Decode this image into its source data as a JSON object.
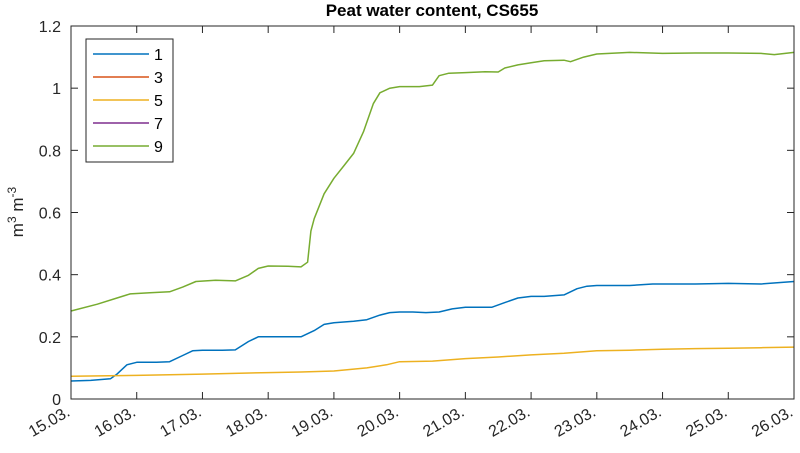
{
  "chart_data": {
    "type": "line",
    "title": "Peat water content, CS655",
    "xlabel": "",
    "ylabel": "m^3 m^-3",
    "ylabel_parts": {
      "base1": "m",
      "exp1": "3",
      "base2": "m",
      "exp2": "-3"
    },
    "xlim": [
      "15.03.",
      "26.03."
    ],
    "ylim": [
      0,
      1.2
    ],
    "x_ticks": [
      "15.03.",
      "16.03.",
      "17.03.",
      "18.03.",
      "19.03.",
      "20.03.",
      "21.03.",
      "22.03.",
      "23.03.",
      "24.03.",
      "25.03.",
      "26.03."
    ],
    "y_ticks": [
      "0",
      "0.2",
      "0.4",
      "0.6",
      "0.8",
      "1",
      "1.2"
    ],
    "y_tick_values": [
      0,
      0.2,
      0.4,
      0.6,
      0.8,
      1.0,
      1.2
    ],
    "grid": false,
    "legend_position": "northwest",
    "x_day_offsets_note": "x values are days after 15.03.",
    "series": [
      {
        "name": "1",
        "color": "#0072BD",
        "x": [
          0,
          0.3,
          0.6,
          0.7,
          0.85,
          1.0,
          1.3,
          1.5,
          1.7,
          1.85,
          2.0,
          2.3,
          2.5,
          2.7,
          2.85,
          3.0,
          3.3,
          3.5,
          3.7,
          3.85,
          4.0,
          4.3,
          4.5,
          4.7,
          4.85,
          5.0,
          5.2,
          5.4,
          5.6,
          5.8,
          6.0,
          6.2,
          6.4,
          6.6,
          6.8,
          7.0,
          7.2,
          7.5,
          7.7,
          7.85,
          8.0,
          8.3,
          8.5,
          8.7,
          8.85,
          9.0,
          9.5,
          10.0,
          10.5,
          11.0
        ],
        "y": [
          0.058,
          0.06,
          0.065,
          0.08,
          0.11,
          0.118,
          0.118,
          0.12,
          0.14,
          0.155,
          0.157,
          0.157,
          0.158,
          0.185,
          0.2,
          0.2,
          0.2,
          0.2,
          0.22,
          0.24,
          0.245,
          0.25,
          0.255,
          0.27,
          0.278,
          0.28,
          0.28,
          0.278,
          0.28,
          0.29,
          0.295,
          0.295,
          0.295,
          0.31,
          0.325,
          0.33,
          0.33,
          0.335,
          0.355,
          0.363,
          0.365,
          0.365,
          0.365,
          0.368,
          0.37,
          0.37,
          0.37,
          0.372,
          0.37,
          0.378
        ]
      },
      {
        "name": "3",
        "color": "#D95319",
        "x": [],
        "y": []
      },
      {
        "name": "5",
        "color": "#EDB120",
        "x": [
          0,
          1.0,
          2.0,
          3.0,
          3.5,
          4.0,
          4.5,
          4.8,
          5.0,
          5.5,
          6.0,
          6.5,
          7.0,
          7.5,
          8.0,
          8.5,
          9.0,
          9.5,
          10.0,
          10.5,
          11.0
        ],
        "y": [
          0.073,
          0.076,
          0.08,
          0.085,
          0.087,
          0.09,
          0.1,
          0.11,
          0.12,
          0.122,
          0.13,
          0.135,
          0.142,
          0.147,
          0.155,
          0.157,
          0.16,
          0.162,
          0.163,
          0.165,
          0.167
        ]
      },
      {
        "name": "7",
        "color": "#7E2F8E",
        "x": [],
        "y": []
      },
      {
        "name": "9",
        "color": "#77AC30",
        "x": [
          0,
          0.4,
          0.7,
          0.9,
          1.2,
          1.5,
          1.7,
          1.9,
          2.2,
          2.5,
          2.7,
          2.85,
          3.0,
          3.3,
          3.5,
          3.6,
          3.65,
          3.7,
          3.85,
          4.0,
          4.15,
          4.3,
          4.45,
          4.6,
          4.7,
          4.85,
          5.0,
          5.3,
          5.5,
          5.6,
          5.75,
          6.0,
          6.3,
          6.5,
          6.6,
          6.8,
          7.0,
          7.2,
          7.5,
          7.6,
          7.8,
          8.0,
          8.5,
          9.0,
          9.5,
          10.0,
          10.5,
          10.7,
          11.0
        ],
        "y": [
          0.283,
          0.305,
          0.325,
          0.338,
          0.342,
          0.345,
          0.36,
          0.378,
          0.382,
          0.38,
          0.398,
          0.42,
          0.428,
          0.427,
          0.425,
          0.44,
          0.54,
          0.58,
          0.66,
          0.71,
          0.75,
          0.79,
          0.86,
          0.95,
          0.985,
          1.0,
          1.005,
          1.005,
          1.01,
          1.04,
          1.048,
          1.05,
          1.053,
          1.052,
          1.065,
          1.075,
          1.082,
          1.088,
          1.09,
          1.085,
          1.1,
          1.11,
          1.115,
          1.112,
          1.113,
          1.113,
          1.112,
          1.108,
          1.115
        ]
      }
    ]
  }
}
